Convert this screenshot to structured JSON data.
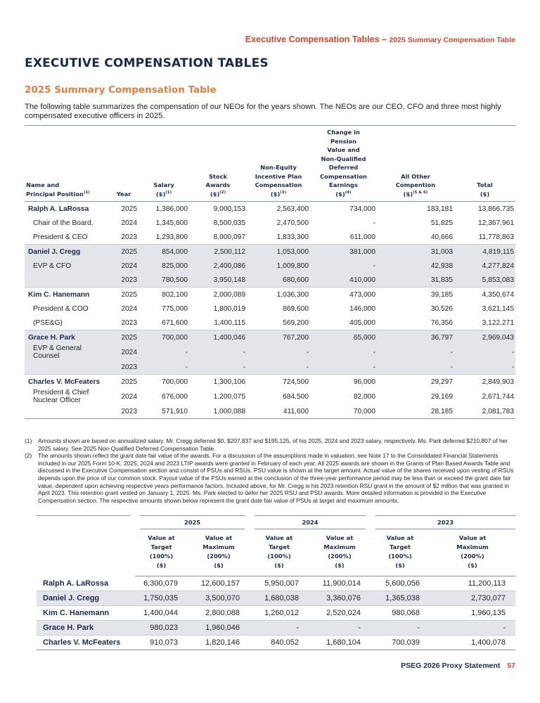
{
  "header": {
    "section": "Executive Compensation Tables",
    "separator": "–",
    "subsection": "2025 Summary Compensation Table"
  },
  "title": "EXECUTIVE COMPENSATION TABLES",
  "subtitle": "2025 Summary Compensation Table",
  "intro": "The following table summarizes the compensation of our NEOs for the years shown. The NEOs are our CEO, CFO and three most highly compensated executive officers in 2025.",
  "table1": {
    "columns": [
      {
        "lines": [
          "Name and",
          "Principal Position"
        ],
        "sup": "(1)"
      },
      {
        "lines": [
          "Year"
        ],
        "sup": null
      },
      {
        "lines": [
          "Salary",
          "($)"
        ],
        "sup": "(1)"
      },
      {
        "lines": [
          "Stock",
          "Awards",
          "($)"
        ],
        "sup": "(2)"
      },
      {
        "lines": [
          "Non-Equity",
          "Incentive Plan",
          "Compensation",
          "($)"
        ],
        "sup": "(3)"
      },
      {
        "lines": [
          "Change in",
          "Pension",
          "Value and",
          "Non-Qualified",
          "Deferred",
          "Compensation",
          "Earnings",
          "($)"
        ],
        "sup": "(4)"
      },
      {
        "lines": [
          "All Other",
          "Compention",
          "($)"
        ],
        "sup": "(5 & 6)"
      },
      {
        "lines": [
          "Total",
          "($)"
        ],
        "sup": null
      }
    ],
    "groups": [
      [
        [
          "Ralph A. LaRossa",
          "2025",
          "1,386,000",
          "9,000,153",
          "2,563,400",
          "734,000",
          "183,181",
          "13,866,735"
        ],
        [
          "Chair of the Board,",
          "2024",
          "1,345,600",
          "8,500,035",
          "2,470,500",
          "-",
          "51,825",
          "12,367,961"
        ],
        [
          "President & CEO",
          "2023",
          "1,293,800",
          "8,000,097",
          "1,833,300",
          "611,000",
          "40,666",
          "11,778,863"
        ]
      ],
      [
        [
          "Daniel J. Cregg",
          "2025",
          "854,000",
          "2,500,112",
          "1,053,000",
          "381,000",
          "31,003",
          "4,819,115"
        ],
        [
          "EVP & CFO",
          "2024",
          "825,000",
          "2,400,086",
          "1,009,800",
          "-",
          "42,938",
          "4,277,824"
        ],
        [
          null,
          "2023",
          "780,500",
          "3,950,148",
          "680,600",
          "410,000",
          "31,835",
          "5,853,083"
        ]
      ],
      [
        [
          "Kim C. Hanemann",
          "2025",
          "802,100",
          "2,000,089",
          "1,036,300",
          "473,000",
          "39,185",
          "4,350,674"
        ],
        [
          "President & COO",
          "2024",
          "775,000",
          "1,800,019",
          "869,600",
          "146,000",
          "30,526",
          "3,621,145"
        ],
        [
          "(PSE&G)",
          "2023",
          "671,600",
          "1,400,115",
          "569,200",
          "405,000",
          "76,356",
          "3,122,271"
        ]
      ],
      [
        [
          "Grace H. Park",
          "2025",
          "700,000",
          "1,400,046",
          "767,200",
          "65,000",
          "36,797",
          "2,969,043"
        ],
        [
          "EVP & General Counsel",
          "2024",
          "-",
          "-",
          "-",
          "-",
          "-",
          "-"
        ],
        [
          null,
          "2023",
          "-",
          "-",
          "-",
          "-",
          "-",
          "-"
        ]
      ],
      [
        [
          "Charles V. McFeaters",
          "2025",
          "700,000",
          "1,300,106",
          "724,500",
          "96,000",
          "29,297",
          "2,849,903"
        ],
        [
          "President & Chief Nuclear Officer",
          "2024",
          "676,000",
          "1,200,075",
          "684,500",
          "82,000",
          "29,169",
          "2,671,744"
        ],
        [
          null,
          "2023",
          "571,910",
          "1,000,088",
          "411,600",
          "70,000",
          "28,185",
          "2,081,783"
        ]
      ]
    ]
  },
  "footnotes": [
    {
      "marker": "(1)",
      "text": "Amounts shown are based on annualized salary. Mr. Cregg deferred $0, $207,837 and $195,125, of his 2025, 2024 and 2023 salary, respectively. Ms. Park deferred $210,807 of her 2025 salary. See 2025 Non-Qualified Deferred Compensation Table."
    },
    {
      "marker": "(2)",
      "text": "The amounts shown reflect the grant date fair value of the awards. For a discussion of the assumptions made in valuation, see Note 17 to the Consolidated Financial Statements included in our 2025 Form 10-K. 2025, 2024 and 2023 LTIP awards were granted in February of each year. All 2025 awards are shown in the Grants of Plan Based Awards Table and discussed in the Executive Compensation section and consist of PSUs and RSUs. PSU value is shown at the target amount. Actual value of the shares received upon vesting of RSUs depends upon the price of our common stock. Payout value of the PSUs earned at the conclusion of the three-year performance period may be less than or exceed the grant date fair value, dependent upon achieving respective years performance factors. Included above, for Mr. Cregg is his 2023 retention RSU grant in the amount of $2 million that was granted in April 2023. This retention grant vested on January 1, 2025. Ms. Park elected to defer her 2025 RSU and PSU awards. More detailed information is provided in the Executive Compensation section. The respective amounts shown below represent the grant date fair value of PSUs at target and maximum amounts."
    }
  ],
  "table2": {
    "years": [
      {
        "year": "2025",
        "headers": [
          [
            "Value at",
            "Target",
            "(100%)",
            "($)"
          ],
          [
            "Value at",
            "Maximum",
            "(200%)",
            "($)"
          ]
        ]
      },
      {
        "year": "2024",
        "headers": [
          [
            "Value at",
            "Target",
            "(100%)",
            "($)"
          ],
          [
            "Value at",
            "Maximum",
            "(200%)",
            "($)"
          ]
        ]
      },
      {
        "year": "2023",
        "headers": [
          [
            "Value at",
            "Target",
            "(100%)",
            "($)"
          ],
          [
            "Value at",
            "Maximum",
            "(200%)",
            "($)"
          ]
        ]
      }
    ],
    "rows": [
      [
        "Ralph A. LaRossa",
        "6,300,079",
        "12,600,157",
        "5,950,007",
        "11,900,014",
        "5,600,056",
        "11,200,113"
      ],
      [
        "Daniel J. Cregg",
        "1,750,035",
        "3,500,070",
        "1,680,038",
        "3,360,076",
        "1,365,038",
        "2,730,077"
      ],
      [
        "Kim C. Hanemann",
        "1,400,044",
        "2,800,088",
        "1,260,012",
        "2,520,024",
        "980,068",
        "1,960,135"
      ],
      [
        "Grace H. Park",
        "980,023",
        "1,960,046",
        "-",
        "-",
        "-",
        "-"
      ],
      [
        "Charles V. McFeaters",
        "910,073",
        "1,820,146",
        "840,052",
        "1,680,104",
        "700,039",
        "1,400,078"
      ]
    ]
  },
  "footer": {
    "text": "PSEG 2026 Proxy Statement",
    "page": "57"
  }
}
